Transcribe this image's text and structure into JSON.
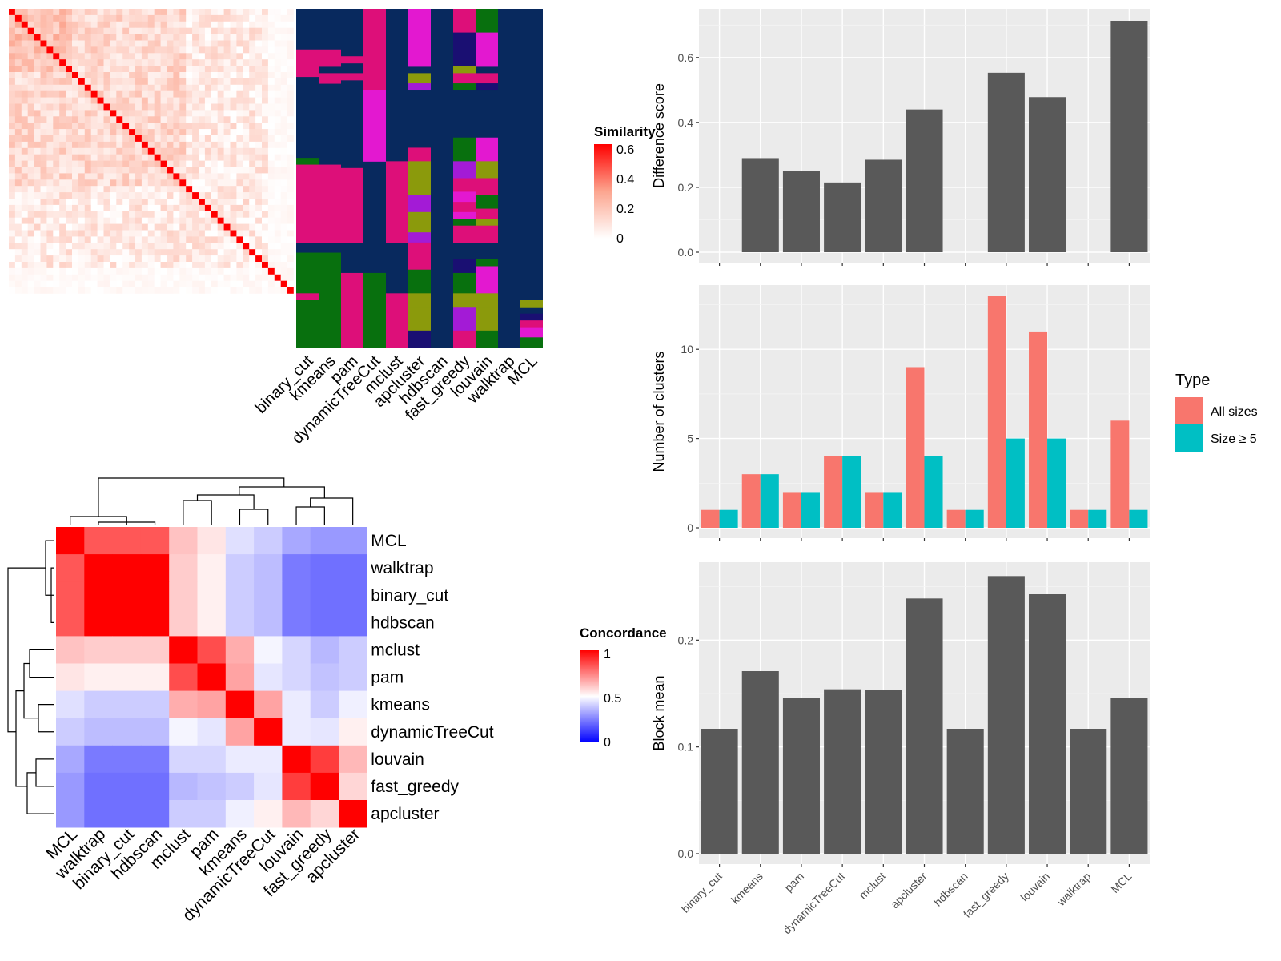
{
  "methods": [
    "binary_cut",
    "kmeans",
    "pam",
    "dynamicTreeCut",
    "mclust",
    "apcluster",
    "hdbscan",
    "fast_greedy",
    "louvain",
    "walktrap",
    "MCL"
  ],
  "colors": {
    "panel_bg": "#EBEBEB",
    "grid": "#FFFFFF",
    "bar_dark": "#595959",
    "all_sizes": "#F8766D",
    "size_ge5": "#00BFC4",
    "navy": "#08295E",
    "magenta": "#DD0F79",
    "green": "#08700E",
    "olive": "#8B9A0C",
    "purple": "#A31BD6",
    "pink": "#E318D0",
    "indigo": "#1A0F72"
  },
  "similarity_heatmap": {
    "legend_title": "Similarity",
    "legend_ticks": [
      "0.6",
      "0.4",
      "0.2",
      "0"
    ]
  },
  "concordance_heatmap": {
    "legend_title": "Concordance",
    "legend_ticks": [
      "1",
      "0.5",
      "0"
    ],
    "order": [
      "MCL",
      "walktrap",
      "binary_cut",
      "hdbscan",
      "mclust",
      "pam",
      "kmeans",
      "dynamicTreeCut",
      "louvain",
      "fast_greedy",
      "apcluster"
    ],
    "matrix": [
      [
        1.0,
        0.83,
        0.83,
        0.83,
        0.62,
        0.55,
        0.44,
        0.4,
        0.33,
        0.3,
        0.3
      ],
      [
        0.83,
        1.0,
        1.0,
        1.0,
        0.6,
        0.53,
        0.4,
        0.37,
        0.24,
        0.22,
        0.22
      ],
      [
        0.83,
        1.0,
        1.0,
        1.0,
        0.6,
        0.53,
        0.4,
        0.37,
        0.24,
        0.22,
        0.22
      ],
      [
        0.83,
        1.0,
        1.0,
        1.0,
        0.6,
        0.53,
        0.4,
        0.37,
        0.24,
        0.22,
        0.22
      ],
      [
        0.62,
        0.6,
        0.6,
        0.6,
        1.0,
        0.85,
        0.66,
        0.48,
        0.42,
        0.36,
        0.4
      ],
      [
        0.55,
        0.53,
        0.53,
        0.53,
        0.85,
        1.0,
        0.68,
        0.45,
        0.42,
        0.38,
        0.4
      ],
      [
        0.44,
        0.4,
        0.4,
        0.4,
        0.66,
        0.68,
        1.0,
        0.68,
        0.46,
        0.4,
        0.47
      ],
      [
        0.4,
        0.37,
        0.37,
        0.37,
        0.48,
        0.45,
        0.68,
        1.0,
        0.46,
        0.45,
        0.53
      ],
      [
        0.33,
        0.24,
        0.24,
        0.24,
        0.42,
        0.42,
        0.46,
        0.46,
        1.0,
        0.88,
        0.64
      ],
      [
        0.3,
        0.22,
        0.22,
        0.22,
        0.36,
        0.38,
        0.4,
        0.45,
        0.88,
        1.0,
        0.58
      ],
      [
        0.3,
        0.22,
        0.22,
        0.22,
        0.4,
        0.4,
        0.47,
        0.53,
        0.64,
        0.58,
        1.0
      ]
    ]
  },
  "chart_data": [
    {
      "type": "bar",
      "ylabel": "Difference score",
      "categories": [
        "binary_cut",
        "kmeans",
        "pam",
        "dynamicTreeCut",
        "mclust",
        "apcluster",
        "hdbscan",
        "fast_greedy",
        "louvain",
        "walktrap",
        "MCL"
      ],
      "values": [
        0,
        0.29,
        0.25,
        0.215,
        0.285,
        0.44,
        0,
        0.553,
        0.478,
        0,
        0.713
      ],
      "ylim": [
        0,
        0.75
      ],
      "yticks": [
        "0.0",
        "0.2",
        "0.4",
        "0.6"
      ],
      "grid": true
    },
    {
      "type": "bar",
      "ylabel": "Number of clusters",
      "legend_title": "Type",
      "legend_position": "right",
      "categories": [
        "binary_cut",
        "kmeans",
        "pam",
        "dynamicTreeCut",
        "mclust",
        "apcluster",
        "hdbscan",
        "fast_greedy",
        "louvain",
        "walktrap",
        "MCL"
      ],
      "series": [
        {
          "name": "All sizes",
          "values": [
            1,
            3,
            2,
            4,
            2,
            9,
            1,
            13,
            11,
            1,
            6
          ]
        },
        {
          "name": "Size ≥ 5",
          "values": [
            1,
            3,
            2,
            4,
            2,
            4,
            1,
            5,
            5,
            1,
            1
          ]
        }
      ],
      "ylim": [
        0,
        13.6
      ],
      "yticks": [
        "0",
        "5",
        "10"
      ],
      "grid": true
    },
    {
      "type": "bar",
      "ylabel": "Block mean",
      "categories": [
        "binary_cut",
        "kmeans",
        "pam",
        "dynamicTreeCut",
        "mclust",
        "apcluster",
        "hdbscan",
        "fast_greedy",
        "louvain",
        "walktrap",
        "MCL"
      ],
      "values": [
        0.117,
        0.171,
        0.146,
        0.154,
        0.153,
        0.239,
        0.117,
        0.26,
        0.243,
        0.117,
        0.146
      ],
      "ylim": [
        0,
        0.273
      ],
      "yticks": [
        "0.0",
        "0.1",
        "0.2"
      ],
      "grid": true
    }
  ]
}
